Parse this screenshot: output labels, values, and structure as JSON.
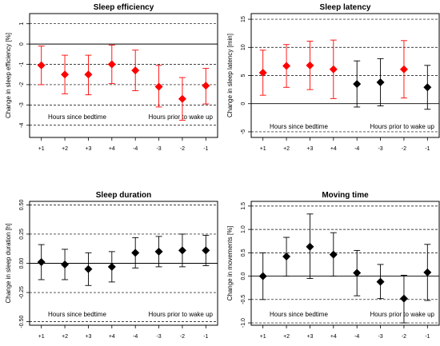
{
  "figure": {
    "annotations": {
      "left": "Hours since bedtime",
      "right": "Hours prior to wake up"
    },
    "marker_colors": {
      "significant": "#ff0000",
      "nonsignificant": "#000000"
    }
  },
  "chart_data": [
    {
      "type": "scatter",
      "title": "Sleep efficiency",
      "ylabel": "Change in sleep efficiency [%]",
      "xlabel": "",
      "categories": [
        "+1",
        "+2",
        "+3",
        "+4",
        "-4",
        "-3",
        "-2",
        "-1"
      ],
      "values": [
        -1.05,
        -1.5,
        -1.5,
        -1.0,
        -1.3,
        -2.1,
        -2.7,
        -2.05
      ],
      "ci_low": [
        -2.0,
        -2.45,
        -2.5,
        -1.95,
        -2.3,
        -3.1,
        -3.75,
        -2.95
      ],
      "ci_high": [
        -0.1,
        -0.55,
        -0.55,
        -0.05,
        -0.3,
        -1.05,
        -1.65,
        -1.2
      ],
      "significant": [
        true,
        true,
        true,
        true,
        true,
        true,
        true,
        true
      ],
      "ylim": [
        -4.6,
        1.5
      ],
      "yticks": [
        1,
        0,
        -1,
        -2,
        -3,
        -4
      ],
      "ytick_labels": [
        "1",
        "0",
        "-1",
        "-2",
        "-3",
        "-4"
      ],
      "dashed_lines": [
        1,
        -1,
        -2,
        -3,
        -4
      ],
      "zero_line": 0,
      "grid": false,
      "annotations": [
        "Hours since bedtime",
        "Hours prior to wake up"
      ]
    },
    {
      "type": "scatter",
      "title": "Sleep latency",
      "ylabel": "Change in sleep latency [min]",
      "xlabel": "",
      "categories": [
        "+1",
        "+2",
        "+3",
        "+4",
        "-4",
        "-3",
        "-2",
        "-1"
      ],
      "values": [
        5.5,
        6.7,
        6.8,
        6.1,
        3.5,
        3.8,
        6.1,
        2.9
      ],
      "ci_low": [
        1.5,
        2.9,
        2.5,
        0.9,
        -0.6,
        -0.4,
        1.0,
        -1.0
      ],
      "ci_high": [
        9.5,
        10.5,
        11.1,
        11.3,
        7.6,
        8.0,
        11.2,
        6.8
      ],
      "significant": [
        true,
        true,
        true,
        true,
        false,
        false,
        true,
        false
      ],
      "ylim": [
        -6,
        16
      ],
      "yticks": [
        15,
        10,
        5,
        0,
        -5
      ],
      "ytick_labels": [
        "15",
        "10",
        "5",
        "0",
        "-5"
      ],
      "dashed_lines": [
        15,
        10,
        5,
        -5
      ],
      "zero_line": 0,
      "grid": false,
      "annotations": [
        "Hours since bedtime",
        "Hours prior to wake up"
      ]
    },
    {
      "type": "scatter",
      "title": "Sleep duration",
      "ylabel": "Change in sleep duration [h]",
      "xlabel": "",
      "categories": [
        "+1",
        "+2",
        "+3",
        "+4",
        "-4",
        "-3",
        "-2",
        "-1"
      ],
      "values": [
        0.01,
        -0.01,
        -0.05,
        -0.03,
        0.09,
        0.1,
        0.11,
        0.11
      ],
      "ci_low": [
        -0.14,
        -0.14,
        -0.19,
        -0.16,
        -0.04,
        -0.03,
        -0.03,
        -0.02
      ],
      "ci_high": [
        0.16,
        0.12,
        0.09,
        0.1,
        0.22,
        0.23,
        0.25,
        0.24
      ],
      "significant": [
        false,
        false,
        false,
        false,
        false,
        false,
        false,
        false
      ],
      "ylim": [
        -0.53,
        0.53
      ],
      "yticks": [
        0.5,
        0.25,
        0,
        -0.25,
        -0.5
      ],
      "ytick_labels": [
        "0.50",
        "0.25",
        "0.00",
        "-0.25",
        "-0.50"
      ],
      "dashed_lines": [
        0.5,
        0.25,
        -0.25,
        -0.5
      ],
      "zero_line": 0,
      "grid": false,
      "annotations": [
        "Hours since bedtime",
        "Hours prior to wake up"
      ]
    },
    {
      "type": "scatter",
      "title": "Moving time",
      "ylabel": "Change in movements [%]",
      "xlabel": "",
      "categories": [
        "+1",
        "+2",
        "+3",
        "+4",
        "-4",
        "-3",
        "-2",
        "-1"
      ],
      "values": [
        0.0,
        0.42,
        0.63,
        0.46,
        0.07,
        -0.12,
        -0.48,
        0.08
      ],
      "ci_low": [
        -0.5,
        0.0,
        -0.05,
        0.0,
        -0.42,
        -0.48,
        -1.0,
        -0.52
      ],
      "ci_high": [
        0.5,
        0.83,
        1.33,
        0.93,
        0.55,
        0.25,
        0.02,
        0.68
      ],
      "significant": [
        false,
        false,
        false,
        false,
        false,
        false,
        false,
        false
      ],
      "ylim": [
        -1.05,
        1.6
      ],
      "yticks": [
        1.5,
        1.0,
        0.5,
        0.0,
        -0.5,
        -1.0
      ],
      "ytick_labels": [
        "1.5",
        "1.0",
        "0.5",
        "0.0",
        "-0.5",
        "-1.0"
      ],
      "dashed_lines": [
        1.5,
        1.0,
        0.5,
        -0.5,
        -1.0
      ],
      "zero_line": 0,
      "grid": false,
      "annotations": [
        "Hours since bedtime",
        "Hours prior to wake up"
      ]
    }
  ]
}
